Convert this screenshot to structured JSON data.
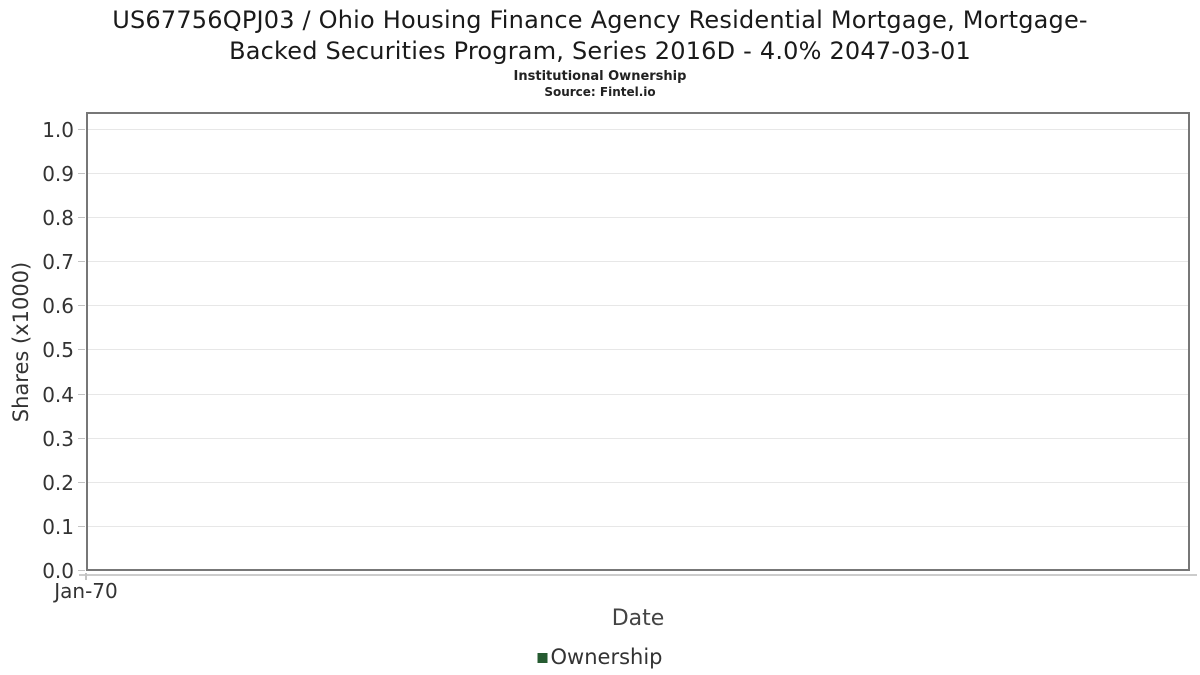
{
  "chart_data": {
    "type": "line",
    "title": "US67756QPJ03 / Ohio Housing Finance Agency Residential Mortgage, Mortgage-Backed Securities Program, Series 2016D - 4.0% 2047-03-01",
    "title_lines": [
      "US67756QPJ03 / Ohio Housing Finance Agency Residential Mortgage, Mortgage-",
      "Backed Securities Program, Series 2016D - 4.0% 2047-03-01"
    ],
    "subtitle": "Institutional Ownership",
    "source": "Source: Fintel.io",
    "xlabel": "Date",
    "ylabel": "Shares (x1000)",
    "x_tick_labels": [
      "Jan-70"
    ],
    "y_tick_labels": [
      "0.0",
      "0.1",
      "0.2",
      "0.3",
      "0.4",
      "0.5",
      "0.6",
      "0.7",
      "0.8",
      "0.9",
      "1.0"
    ],
    "ylim": [
      0.0,
      1.04
    ],
    "grid": "horizontal",
    "legend_position": "bottom",
    "series": [
      {
        "name": "Ownership",
        "color": "#265b31",
        "x": [],
        "values": []
      }
    ],
    "colors": {
      "plot_border": "#777777",
      "gridline": "#e7e7e7",
      "tick_mark": "#c3c3c3",
      "axis_subline": "#cccccc",
      "title_text": "#1a1a1a",
      "tick_label": "#333333",
      "axis_label": "#444444",
      "legend_text": "#333333"
    }
  }
}
